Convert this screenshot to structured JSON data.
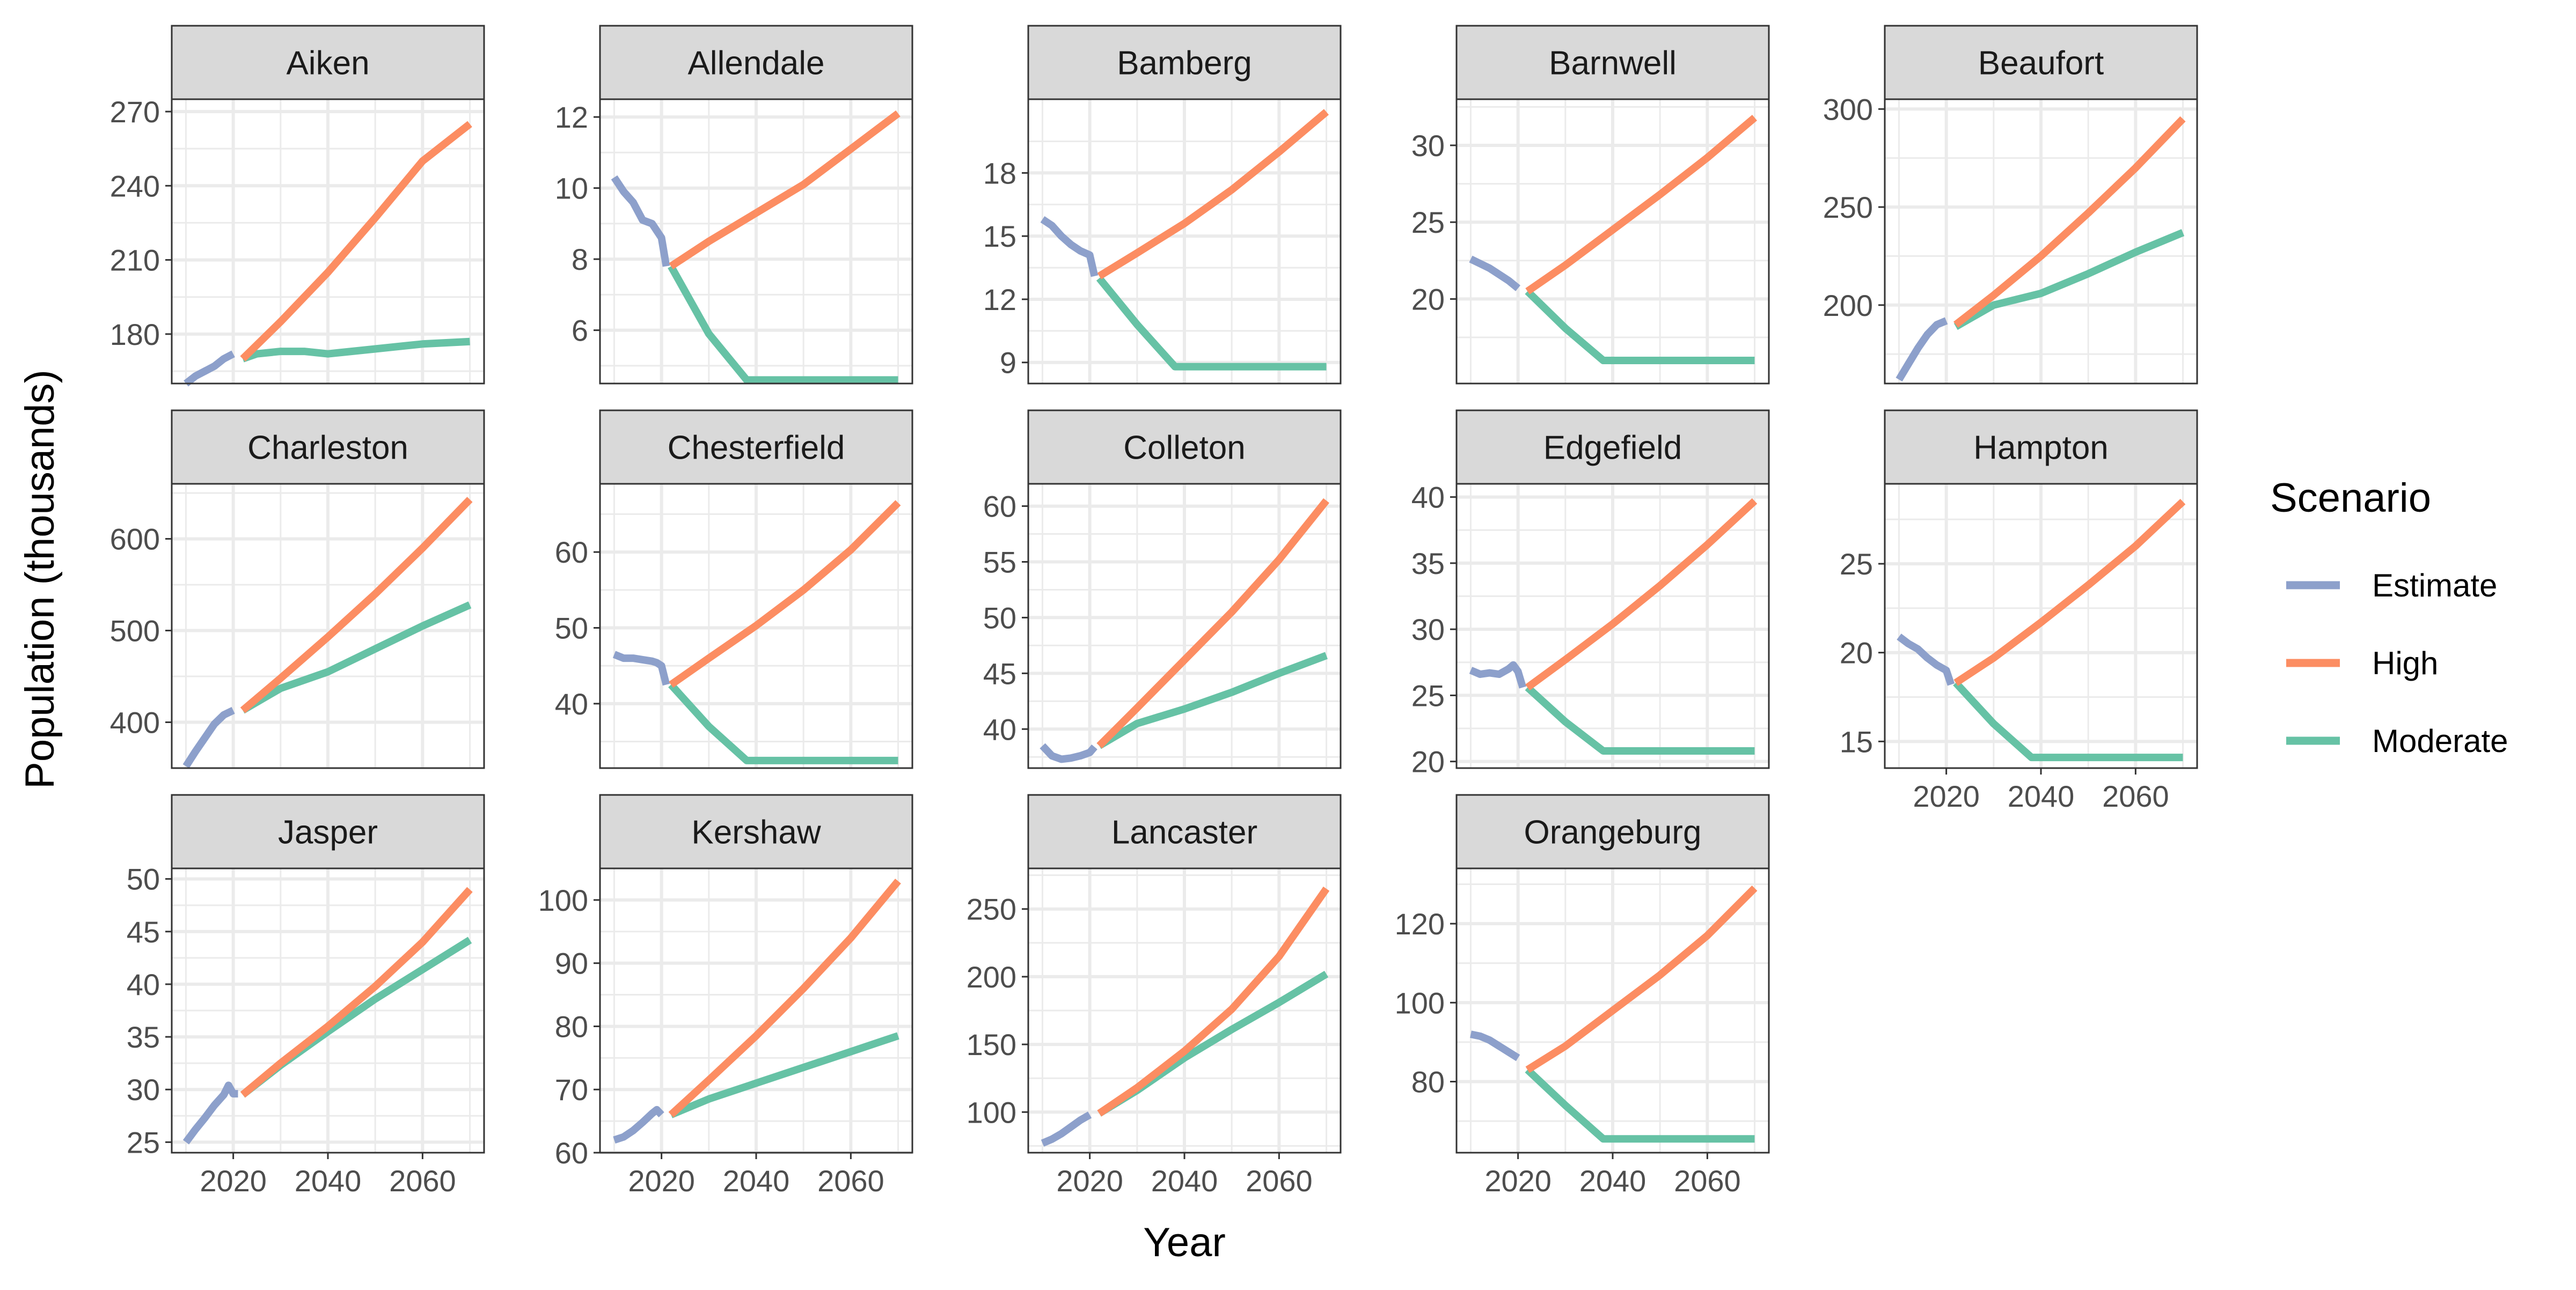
{
  "chart_data": {
    "type": "line",
    "xlabel": "Year",
    "ylabel": "Population (thousands)",
    "x_ticks": [
      2020,
      2040,
      2060
    ],
    "x_range": [
      2010,
      2070
    ],
    "legend": {
      "title": "Scenario",
      "position": "right",
      "entries": [
        {
          "name": "Estimate",
          "color": "#8DA0CB"
        },
        {
          "name": "High",
          "color": "#FC8D62"
        },
        {
          "name": "Moderate",
          "color": "#66C2A5"
        }
      ]
    },
    "grid": true,
    "panels": [
      {
        "title": "Aiken",
        "ylim": [
          160,
          275
        ],
        "yticks": [
          180,
          210,
          240,
          270
        ],
        "series": [
          {
            "name": "Estimate",
            "x": [
              2010,
              2012,
              2014,
              2016,
              2018,
              2020
            ],
            "values": [
              160,
              163,
              165,
              167,
              170,
              172
            ]
          },
          {
            "name": "High",
            "x": [
              2022,
              2030,
              2040,
              2050,
              2060,
              2070
            ],
            "values": [
              170,
              185,
              205,
              227,
              250,
              265
            ]
          },
          {
            "name": "Moderate",
            "x": [
              2022,
              2025,
              2030,
              2035,
              2040,
              2050,
              2060,
              2070
            ],
            "values": [
              170,
              172,
              173,
              173,
              172,
              174,
              176,
              177
            ]
          }
        ]
      },
      {
        "title": "Allendale",
        "ylim": [
          4.5,
          12.5
        ],
        "yticks": [
          6,
          8,
          10,
          12
        ],
        "series": [
          {
            "name": "Estimate",
            "x": [
              2010,
              2012,
              2014,
              2016,
              2018,
              2020,
              2021
            ],
            "values": [
              10.3,
              9.9,
              9.6,
              9.1,
              9.0,
              8.6,
              7.8
            ]
          },
          {
            "name": "High",
            "x": [
              2022,
              2030,
              2040,
              2050,
              2060,
              2070
            ],
            "values": [
              7.8,
              8.5,
              9.3,
              10.1,
              11.1,
              12.1
            ]
          },
          {
            "name": "Moderate",
            "x": [
              2022,
              2030,
              2038,
              2050,
              2060,
              2070
            ],
            "values": [
              7.8,
              5.9,
              4.6,
              4.6,
              4.6,
              4.6
            ]
          }
        ]
      },
      {
        "title": "Bamberg",
        "ylim": [
          8,
          21.5
        ],
        "yticks": [
          9,
          12,
          15,
          18
        ],
        "series": [
          {
            "name": "Estimate",
            "x": [
              2010,
              2012,
              2014,
              2016,
              2018,
              2020,
              2021
            ],
            "values": [
              15.8,
              15.5,
              15.0,
              14.6,
              14.3,
              14.1,
              13.1
            ]
          },
          {
            "name": "High",
            "x": [
              2022,
              2030,
              2040,
              2050,
              2060,
              2070
            ],
            "values": [
              13.1,
              14.2,
              15.6,
              17.2,
              19.0,
              20.9
            ]
          },
          {
            "name": "Moderate",
            "x": [
              2022,
              2030,
              2038,
              2050,
              2060,
              2070
            ],
            "values": [
              13.0,
              10.8,
              8.8,
              8.8,
              8.8,
              8.8
            ]
          }
        ]
      },
      {
        "title": "Barnwell",
        "ylim": [
          14.5,
          33
        ],
        "yticks": [
          20,
          25,
          30
        ],
        "series": [
          {
            "name": "Estimate",
            "x": [
              2010,
              2012,
              2014,
              2016,
              2018,
              2020
            ],
            "values": [
              22.6,
              22.3,
              22.0,
              21.6,
              21.2,
              20.7
            ]
          },
          {
            "name": "High",
            "x": [
              2022,
              2030,
              2040,
              2050,
              2060,
              2070
            ],
            "values": [
              20.5,
              22.2,
              24.5,
              26.8,
              29.2,
              31.8
            ]
          },
          {
            "name": "Moderate",
            "x": [
              2022,
              2030,
              2038,
              2050,
              2060,
              2070
            ],
            "values": [
              20.5,
              18.1,
              16.0,
              16.0,
              16.0,
              16.0
            ]
          }
        ]
      },
      {
        "title": "Beaufort",
        "ylim": [
          160,
          305
        ],
        "yticks": [
          200,
          250,
          300
        ],
        "series": [
          {
            "name": "Estimate",
            "x": [
              2010,
              2012,
              2014,
              2016,
              2018,
              2020
            ],
            "values": [
              162,
              170,
              178,
              185,
              190,
              192
            ]
          },
          {
            "name": "High",
            "x": [
              2022,
              2030,
              2040,
              2050,
              2060,
              2070
            ],
            "values": [
              190,
              205,
              225,
              247,
              270,
              295
            ]
          },
          {
            "name": "Moderate",
            "x": [
              2022,
              2030,
              2040,
              2050,
              2060,
              2070
            ],
            "values": [
              189,
              200,
              206,
              216,
              227,
              237
            ]
          }
        ]
      },
      {
        "title": "Charleston",
        "ylim": [
          350,
          660
        ],
        "yticks": [
          400,
          500,
          600
        ],
        "series": [
          {
            "name": "Estimate",
            "x": [
              2010,
              2012,
              2014,
              2016,
              2018,
              2020
            ],
            "values": [
              352,
              368,
              383,
              398,
              408,
              413
            ]
          },
          {
            "name": "High",
            "x": [
              2022,
              2030,
              2040,
              2050,
              2060,
              2070
            ],
            "values": [
              413,
              448,
              493,
              540,
              590,
              643
            ]
          },
          {
            "name": "Moderate",
            "x": [
              2022,
              2030,
              2040,
              2050,
              2060,
              2070
            ],
            "values": [
              413,
              437,
              455,
              480,
              505,
              528
            ]
          }
        ]
      },
      {
        "title": "Chesterfield",
        "ylim": [
          31.5,
          69
        ],
        "yticks": [
          40,
          50,
          60
        ],
        "series": [
          {
            "name": "Estimate",
            "x": [
              2010,
              2012,
              2014,
              2016,
              2018,
              2019,
              2020,
              2021
            ],
            "values": [
              46.5,
              46.0,
              46.0,
              45.8,
              45.6,
              45.4,
              45.0,
              42.5
            ]
          },
          {
            "name": "High",
            "x": [
              2022,
              2030,
              2040,
              2050,
              2060,
              2070
            ],
            "values": [
              42.5,
              46.0,
              50.3,
              55.0,
              60.3,
              66.5
            ]
          },
          {
            "name": "Moderate",
            "x": [
              2022,
              2030,
              2038,
              2050,
              2060,
              2070
            ],
            "values": [
              42.5,
              37.0,
              32.5,
              32.5,
              32.5,
              32.5
            ]
          }
        ]
      },
      {
        "title": "Colleton",
        "ylim": [
          36.5,
          62
        ],
        "yticks": [
          40,
          45,
          50,
          55,
          60
        ],
        "series": [
          {
            "name": "Estimate",
            "x": [
              2010,
              2012,
              2014,
              2016,
              2018,
              2020,
              2021
            ],
            "values": [
              38.5,
              37.6,
              37.3,
              37.4,
              37.6,
              37.9,
              38.4
            ]
          },
          {
            "name": "High",
            "x": [
              2022,
              2030,
              2040,
              2050,
              2060,
              2070
            ],
            "values": [
              38.5,
              41.9,
              46.2,
              50.5,
              55.2,
              60.5
            ]
          },
          {
            "name": "Moderate",
            "x": [
              2022,
              2030,
              2040,
              2050,
              2060,
              2070
            ],
            "values": [
              38.5,
              40.5,
              41.8,
              43.3,
              45.0,
              46.6
            ]
          }
        ]
      },
      {
        "title": "Edgefield",
        "ylim": [
          19.5,
          41
        ],
        "yticks": [
          20,
          25,
          30,
          35,
          40
        ],
        "series": [
          {
            "name": "Estimate",
            "x": [
              2010,
              2012,
              2014,
              2016,
              2018,
              2019,
              2020,
              2021
            ],
            "values": [
              26.9,
              26.6,
              26.7,
              26.6,
              27.0,
              27.3,
              26.8,
              25.6
            ]
          },
          {
            "name": "High",
            "x": [
              2022,
              2030,
              2040,
              2050,
              2060,
              2070
            ],
            "values": [
              25.6,
              27.7,
              30.4,
              33.3,
              36.4,
              39.7
            ]
          },
          {
            "name": "Moderate",
            "x": [
              2022,
              2030,
              2038,
              2050,
              2060,
              2070
            ],
            "values": [
              25.6,
              23.0,
              20.8,
              20.8,
              20.8,
              20.8
            ]
          }
        ]
      },
      {
        "title": "Hampton",
        "ylim": [
          13.5,
          29.5
        ],
        "yticks": [
          15,
          20,
          25
        ],
        "series": [
          {
            "name": "Estimate",
            "x": [
              2010,
              2012,
              2014,
              2016,
              2018,
              2020,
              2021
            ],
            "values": [
              20.9,
              20.5,
              20.2,
              19.7,
              19.3,
              19.0,
              18.2
            ]
          },
          {
            "name": "High",
            "x": [
              2022,
              2030,
              2040,
              2050,
              2060,
              2070
            ],
            "values": [
              18.3,
              19.7,
              21.7,
              23.8,
              26.0,
              28.5
            ]
          },
          {
            "name": "Moderate",
            "x": [
              2022,
              2030,
              2038,
              2050,
              2060,
              2070
            ],
            "values": [
              18.3,
              16.0,
              14.1,
              14.1,
              14.1,
              14.1
            ]
          }
        ]
      },
      {
        "title": "Jasper",
        "ylim": [
          24,
          51
        ],
        "yticks": [
          25,
          30,
          35,
          40,
          45,
          50
        ],
        "series": [
          {
            "name": "Estimate",
            "x": [
              2010,
              2012,
              2014,
              2016,
              2018,
              2019,
              2020,
              2021
            ],
            "values": [
              25.0,
              26.2,
              27.3,
              28.5,
              29.5,
              30.4,
              29.6,
              29.6
            ]
          },
          {
            "name": "High",
            "x": [
              2022,
              2030,
              2040,
              2050,
              2060,
              2070
            ],
            "values": [
              29.5,
              32.5,
              36.0,
              39.8,
              44.0,
              49.0
            ]
          },
          {
            "name": "Moderate",
            "x": [
              2022,
              2030,
              2040,
              2050,
              2060,
              2070
            ],
            "values": [
              29.5,
              32.3,
              35.5,
              38.6,
              41.4,
              44.2
            ]
          }
        ]
      },
      {
        "title": "Kershaw",
        "ylim": [
          60,
          105
        ],
        "yticks": [
          60,
          70,
          80,
          90,
          100
        ],
        "series": [
          {
            "name": "Estimate",
            "x": [
              2010,
              2012,
              2014,
              2016,
              2018,
              2019,
              2020
            ],
            "values": [
              62.0,
              62.5,
              63.5,
              64.8,
              66.2,
              66.8,
              66.0
            ]
          },
          {
            "name": "High",
            "x": [
              2022,
              2030,
              2040,
              2050,
              2060,
              2070
            ],
            "values": [
              66.0,
              71.5,
              78.5,
              86.0,
              94.0,
              103.0
            ]
          },
          {
            "name": "Moderate",
            "x": [
              2022,
              2030,
              2040,
              2050,
              2060,
              2070
            ],
            "values": [
              66.0,
              68.5,
              71.0,
              73.5,
              76.0,
              78.5
            ]
          }
        ]
      },
      {
        "title": "Lancaster",
        "ylim": [
          70,
          280
        ],
        "yticks": [
          100,
          150,
          200,
          250
        ],
        "series": [
          {
            "name": "Estimate",
            "x": [
              2010,
              2012,
              2014,
              2016,
              2018,
              2020
            ],
            "values": [
              77,
              80,
              84,
              89,
              94,
              98
            ]
          },
          {
            "name": "High",
            "x": [
              2022,
              2030,
              2040,
              2050,
              2060,
              2070
            ],
            "values": [
              99,
              118,
              145,
              176,
              215,
              265
            ]
          },
          {
            "name": "Moderate",
            "x": [
              2022,
              2030,
              2040,
              2050,
              2060,
              2070
            ],
            "values": [
              99,
              116,
              140,
              161,
              181,
              202
            ]
          }
        ]
      },
      {
        "title": "Orangeburg",
        "ylim": [
          62,
          134
        ],
        "yticks": [
          80,
          100,
          120
        ],
        "series": [
          {
            "name": "Estimate",
            "x": [
              2010,
              2012,
              2014,
              2016,
              2018,
              2020
            ],
            "values": [
              92,
              91.5,
              90.5,
              89,
              87.5,
              86
            ]
          },
          {
            "name": "High",
            "x": [
              2022,
              2030,
              2040,
              2050,
              2060,
              2070
            ],
            "values": [
              83,
              89,
              98,
              107,
              117,
              129
            ]
          },
          {
            "name": "Moderate",
            "x": [
              2022,
              2030,
              2038,
              2050,
              2060,
              2070
            ],
            "values": [
              83,
              74,
              65.5,
              65.5,
              65.5,
              65.5
            ]
          }
        ]
      }
    ]
  }
}
